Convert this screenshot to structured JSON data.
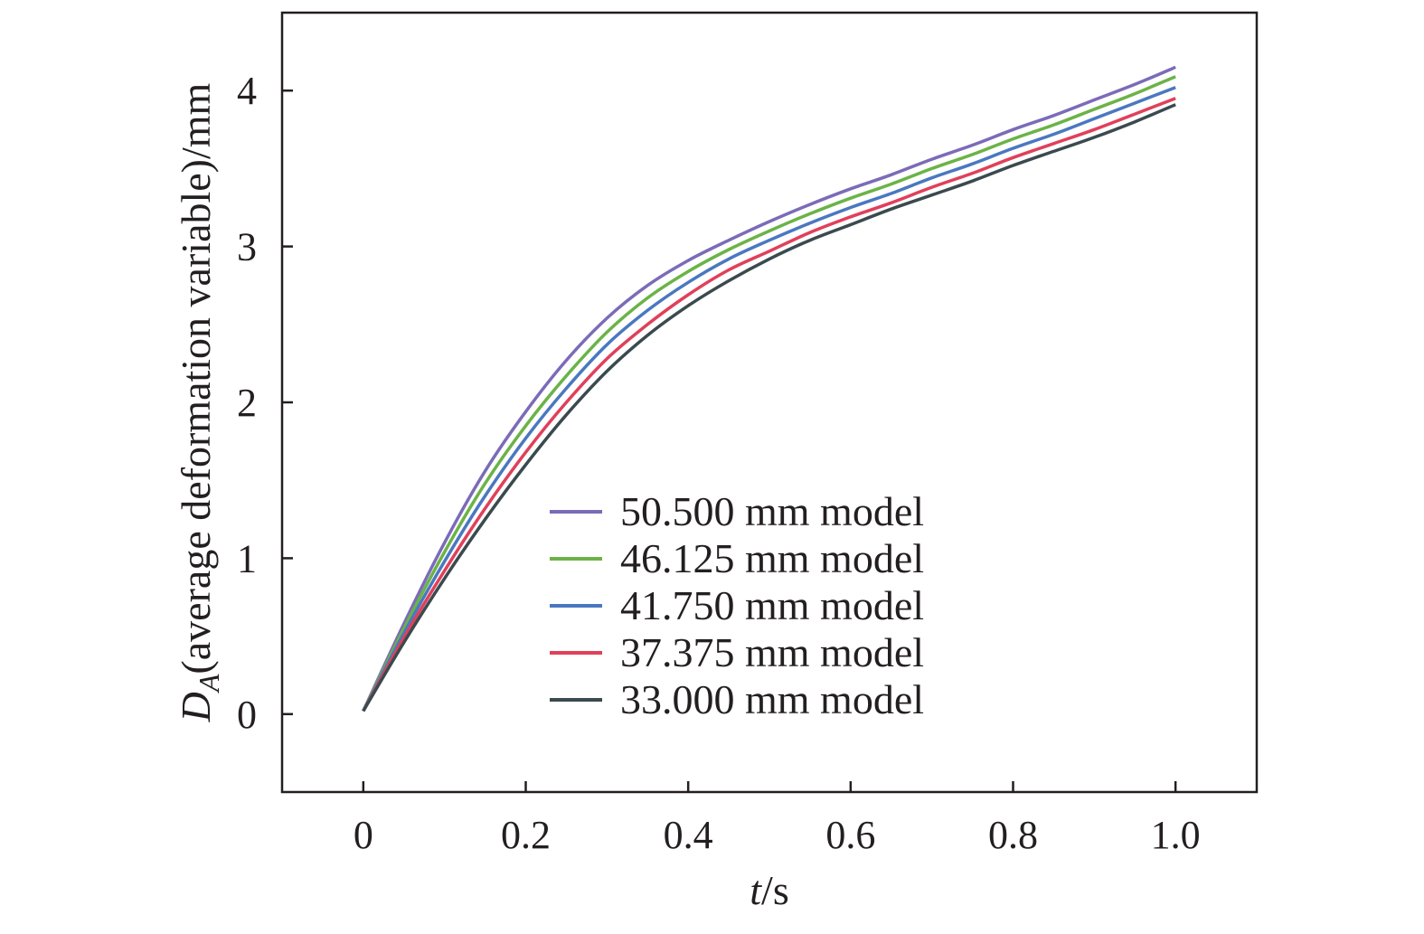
{
  "chart_data": {
    "type": "line",
    "xlabel": {
      "var": "t",
      "unit": "/s"
    },
    "ylabel": {
      "var": "D",
      "sub": "A",
      "text": "(average deformation variable)/mm"
    },
    "xlim": [
      -0.1,
      1.1
    ],
    "ylim": [
      -0.5,
      4.5
    ],
    "x_ticks": [
      0,
      0.2,
      0.4,
      0.6,
      0.8,
      1.0
    ],
    "x_tick_labels": [
      "0",
      "0.2",
      "0.4",
      "0.6",
      "0.8",
      "1.0"
    ],
    "y_ticks": [
      0,
      1,
      2,
      3,
      4
    ],
    "y_tick_labels": [
      "0",
      "1",
      "2",
      "3",
      "4"
    ],
    "grid": false,
    "legend_position": "lower-center",
    "x": [
      0,
      0.05,
      0.1,
      0.15,
      0.2,
      0.25,
      0.3,
      0.35,
      0.4,
      0.45,
      0.5,
      0.55,
      0.6,
      0.65,
      0.7,
      0.75,
      0.8,
      0.85,
      0.9,
      0.95,
      1.0
    ],
    "series": [
      {
        "name": "50.500 mm model",
        "color": "#7b6bb8",
        "values": [
          0.02,
          0.58,
          1.1,
          1.56,
          1.94,
          2.27,
          2.54,
          2.75,
          2.91,
          3.04,
          3.16,
          3.27,
          3.37,
          3.46,
          3.56,
          3.65,
          3.75,
          3.84,
          3.94,
          4.04,
          4.15
        ]
      },
      {
        "name": "46.125 mm model",
        "color": "#6bb347",
        "values": [
          0.02,
          0.55,
          1.04,
          1.48,
          1.85,
          2.17,
          2.45,
          2.67,
          2.84,
          2.98,
          3.1,
          3.21,
          3.31,
          3.4,
          3.5,
          3.59,
          3.69,
          3.78,
          3.88,
          3.98,
          4.09
        ]
      },
      {
        "name": "41.750 mm model",
        "color": "#4a78c0",
        "values": [
          0.02,
          0.52,
          0.98,
          1.4,
          1.77,
          2.09,
          2.37,
          2.59,
          2.77,
          2.92,
          3.04,
          3.15,
          3.25,
          3.34,
          3.44,
          3.53,
          3.63,
          3.72,
          3.82,
          3.92,
          4.02
        ]
      },
      {
        "name": "37.375 mm model",
        "color": "#e0405a",
        "values": [
          0.02,
          0.49,
          0.92,
          1.32,
          1.68,
          2.0,
          2.28,
          2.5,
          2.69,
          2.85,
          2.97,
          3.09,
          3.19,
          3.28,
          3.38,
          3.47,
          3.57,
          3.66,
          3.75,
          3.85,
          3.95
        ]
      },
      {
        "name": "33.000 mm model",
        "color": "#3a4a4e",
        "values": [
          0.02,
          0.46,
          0.87,
          1.25,
          1.6,
          1.92,
          2.2,
          2.43,
          2.62,
          2.78,
          2.92,
          3.04,
          3.14,
          3.24,
          3.33,
          3.42,
          3.52,
          3.61,
          3.7,
          3.8,
          3.91
        ]
      }
    ]
  }
}
